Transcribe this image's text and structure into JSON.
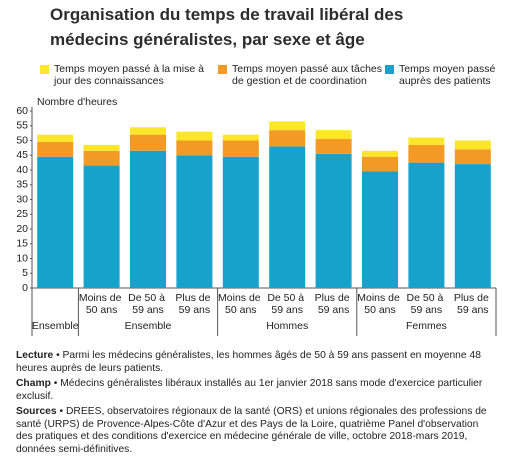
{
  "chart_data": {
    "type": "stacked-bar",
    "title": "Organisation du temps de travail libéral des médecins généralistes, par sexe et âge",
    "y_label": "Nombre d'heures",
    "groups": [
      {
        "label": "Ensemble",
        "categories": [
          null
        ]
      },
      {
        "label": "Ensemble",
        "categories": [
          "Moins de 50 ans",
          "De 50 à 59 ans",
          "Plus de 59 ans"
        ]
      },
      {
        "label": "Hommes",
        "categories": [
          "Moins de 50 ans",
          "De 50 à 59 ans",
          "Plus de 59 ans"
        ]
      },
      {
        "label": "Femmes",
        "categories": [
          "Moins de 50 ans",
          "De 50 à 59 ans",
          "Plus de 59 ans"
        ]
      }
    ],
    "series": [
      {
        "name": "Temps moyen passé auprès des patients",
        "color": "#17a2cc",
        "values": [
          44.5,
          41.5,
          46.5,
          45,
          44.5,
          48,
          45.5,
          39.5,
          42.5,
          42
        ]
      },
      {
        "name": "Temps moyen passé aux tâches de gestion et de coordination",
        "color": "#f39a24",
        "values": [
          5,
          5,
          5.5,
          5,
          5.5,
          5.5,
          5,
          5,
          6,
          5
        ]
      },
      {
        "name": "Temps moyen passé à la mise à jour des connaissances",
        "color": "#fbe62a",
        "values": [
          2.5,
          2,
          2.5,
          3,
          2,
          3,
          3,
          2,
          2.5,
          3
        ]
      }
    ],
    "ylim": [
      0,
      60
    ],
    "yticks": [
      0,
      5,
      10,
      15,
      20,
      25,
      30,
      35,
      40,
      45,
      50,
      55,
      60
    ],
    "grid": false
  },
  "notes": [
    {
      "label": "Lecture",
      "text": " • Parmi les médecins généralistes, les hommes âgés de 50 à 59 ans passent en moyenne 48 heures auprès de leurs patients."
    },
    {
      "label": "Champ",
      "text": " • Médecins généralistes libéraux installés au 1er janvier 2018 sans mode d'exercice particulier exclusif."
    },
    {
      "label": "Sources",
      "text": " • DREES, observatoires régionaux de la santé (ORS) et unions régionales des professions de santé (URPS) de Provence-Alpes-Côte d'Azur et des Pays de la Loire, quatrième Panel d'observation des pratiques et des conditions d'exercice en médecine générale de ville, octobre 2018-mars 2019, données semi-définitives."
    }
  ]
}
